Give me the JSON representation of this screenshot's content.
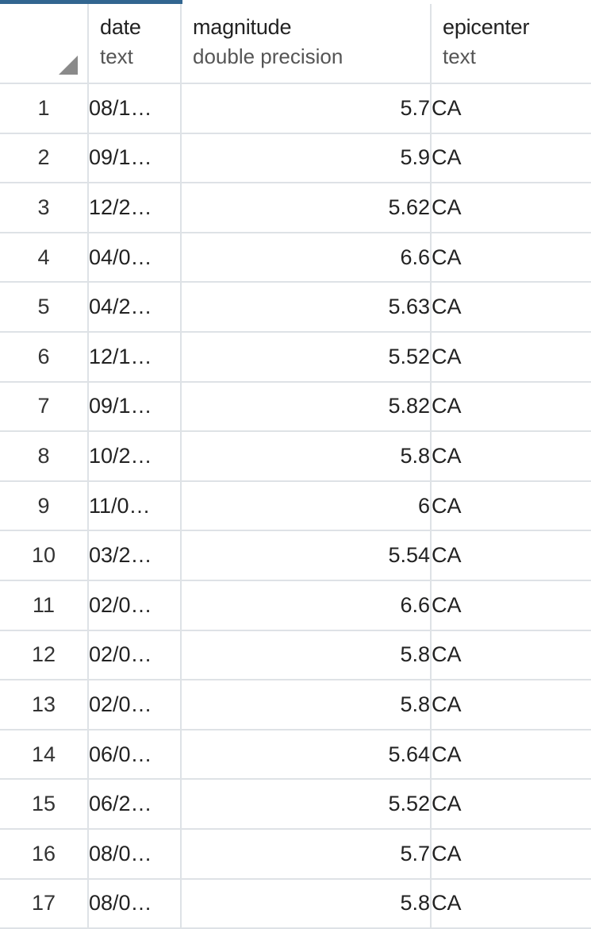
{
  "columns": [
    {
      "name": "",
      "type": ""
    },
    {
      "name": "date",
      "type": "text"
    },
    {
      "name": "magnitude",
      "type": "double precision"
    },
    {
      "name": "epicenter",
      "type": "text"
    }
  ],
  "rows": [
    {
      "num": "1",
      "date": "08/1…",
      "magnitude": "5.7",
      "epicenter": "CA"
    },
    {
      "num": "2",
      "date": "09/1…",
      "magnitude": "5.9",
      "epicenter": "CA"
    },
    {
      "num": "3",
      "date": "12/2…",
      "magnitude": "5.62",
      "epicenter": "CA"
    },
    {
      "num": "4",
      "date": "04/0…",
      "magnitude": "6.6",
      "epicenter": "CA"
    },
    {
      "num": "5",
      "date": "04/2…",
      "magnitude": "5.63",
      "epicenter": "CA"
    },
    {
      "num": "6",
      "date": "12/1…",
      "magnitude": "5.52",
      "epicenter": "CA"
    },
    {
      "num": "7",
      "date": "09/1…",
      "magnitude": "5.82",
      "epicenter": "CA"
    },
    {
      "num": "8",
      "date": "10/2…",
      "magnitude": "5.8",
      "epicenter": "CA"
    },
    {
      "num": "9",
      "date": "11/0…",
      "magnitude": "6",
      "epicenter": "CA"
    },
    {
      "num": "10",
      "date": "03/2…",
      "magnitude": "5.54",
      "epicenter": "CA"
    },
    {
      "num": "11",
      "date": "02/0…",
      "magnitude": "6.6",
      "epicenter": "CA"
    },
    {
      "num": "12",
      "date": "02/0…",
      "magnitude": "5.8",
      "epicenter": "CA"
    },
    {
      "num": "13",
      "date": "02/0…",
      "magnitude": "5.8",
      "epicenter": "CA"
    },
    {
      "num": "14",
      "date": "06/0…",
      "magnitude": "5.64",
      "epicenter": "CA"
    },
    {
      "num": "15",
      "date": "06/2…",
      "magnitude": "5.52",
      "epicenter": "CA"
    },
    {
      "num": "16",
      "date": "08/0…",
      "magnitude": "5.7",
      "epicenter": "CA"
    },
    {
      "num": "17",
      "date": "08/0…",
      "magnitude": "5.8",
      "epicenter": "CA"
    }
  ],
  "colors": {
    "accent": "#326690",
    "grid_line": "#dee2e6",
    "corner_marker": "#8a8a8a"
  }
}
